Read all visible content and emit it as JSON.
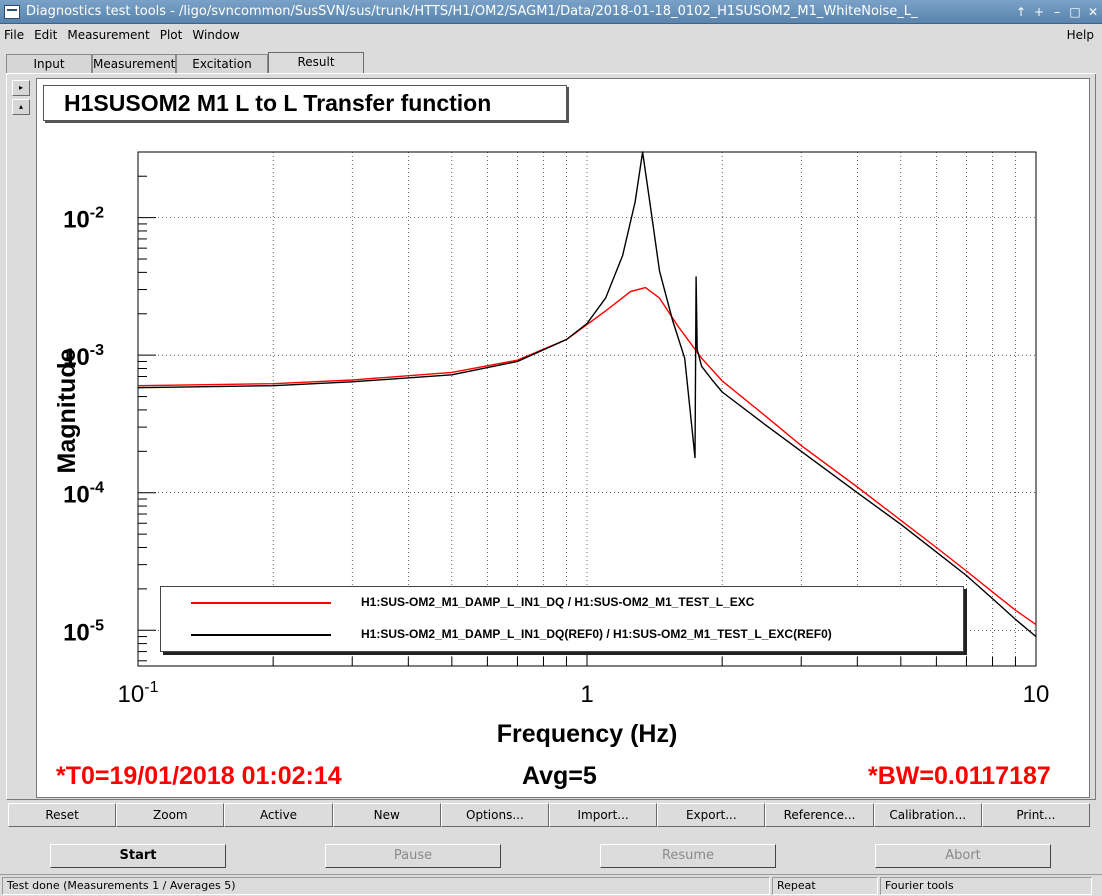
{
  "window": {
    "title": "Diagnostics test tools - /ligo/svncommon/SusSVN/sus/trunk/HTTS/H1/OM2/SAGM1/Data/2018-01-18_0102_H1SUSOM2_M1_WhiteNoise_L_",
    "controls": [
      "↑",
      "+",
      "–",
      "□",
      "✕"
    ]
  },
  "menu": {
    "items": [
      "File",
      "Edit",
      "Measurement",
      "Plot",
      "Window"
    ],
    "help": "Help"
  },
  "tabs": [
    {
      "label": "Input",
      "active": false
    },
    {
      "label": "Measurement",
      "active": false
    },
    {
      "label": "Excitation",
      "active": false
    },
    {
      "label": "Result",
      "active": true
    }
  ],
  "scroll_buttons": [
    "▸",
    "▴"
  ],
  "plot": {
    "title": "H1SUSOM2 M1 L to L Transfer function",
    "info_t0": "*T0=19/01/2018 01:02:14",
    "info_avg": "Avg=5",
    "info_bw": "*BW=0.0117187"
  },
  "chart_data": {
    "type": "line",
    "xlabel": "Frequency (Hz)",
    "ylabel": "Magnitude",
    "xscale": "log",
    "yscale": "log",
    "xlim": [
      0.1,
      10
    ],
    "ylim": [
      5.5e-06,
      0.03
    ],
    "x_ticklabels": [
      "10^-1",
      "1",
      "10"
    ],
    "y_ticklabels": [
      "10^-2",
      "10^-3",
      "10^-4",
      "10^-5"
    ],
    "grid": true,
    "legend_position": "bottom",
    "series": [
      {
        "name": "H1:SUS-OM2_M1_DAMP_L_IN1_DQ / H1:SUS-OM2_M1_TEST_L_EXC",
        "color": "#ff0000",
        "x": [
          0.1,
          0.2,
          0.3,
          0.5,
          0.7,
          0.9,
          1.1,
          1.25,
          1.35,
          1.45,
          1.6,
          1.8,
          2.0,
          2.5,
          3.0,
          4.0,
          5.0,
          6.0,
          7.0,
          8.0,
          9.0,
          10.0
        ],
        "y": [
          0.0006,
          0.00062,
          0.00066,
          0.00075,
          0.00092,
          0.0013,
          0.0021,
          0.0029,
          0.0031,
          0.0026,
          0.0016,
          0.00095,
          0.00065,
          0.00036,
          0.00022,
          0.00011,
          6.3e-05,
          4e-05,
          2.7e-05,
          1.9e-05,
          1.4e-05,
          1.1e-05
        ]
      },
      {
        "name": "H1:SUS-OM2_M1_DAMP_L_IN1_DQ(REF0) / H1:SUS-OM2_M1_TEST_L_EXC(REF0)",
        "color": "#000000",
        "x": [
          0.1,
          0.2,
          0.3,
          0.5,
          0.7,
          0.9,
          1.0,
          1.1,
          1.2,
          1.28,
          1.33,
          1.38,
          1.45,
          1.55,
          1.65,
          1.74,
          1.75,
          1.76,
          1.8,
          1.9,
          2.0,
          2.5,
          3.0,
          4.0,
          5.0,
          6.0,
          7.0,
          8.0,
          9.0,
          10.0
        ],
        "y": [
          0.00058,
          0.0006,
          0.00064,
          0.00072,
          0.0009,
          0.0013,
          0.0017,
          0.0026,
          0.0053,
          0.013,
          0.03,
          0.013,
          0.0041,
          0.0018,
          0.00095,
          0.00018,
          0.0037,
          0.0011,
          0.00083,
          0.00066,
          0.00054,
          0.00031,
          0.0002,
          0.0001,
          5.9e-05,
          3.7e-05,
          2.5e-05,
          1.7e-05,
          1.2e-05,
          9e-06
        ]
      }
    ]
  },
  "toolbar": [
    "Reset",
    "Zoom",
    "Active",
    "New",
    "Options...",
    "Import...",
    "Export...",
    "Reference...",
    "Calibration...",
    "Print..."
  ],
  "actions": [
    {
      "label": "Start",
      "enabled": true
    },
    {
      "label": "Pause",
      "enabled": false
    },
    {
      "label": "Resume",
      "enabled": false
    },
    {
      "label": "Abort",
      "enabled": false
    }
  ],
  "status": {
    "message": "Test done (Measurements 1 / Averages 5)",
    "mode": "Repeat",
    "tool": "Fourier tools"
  }
}
